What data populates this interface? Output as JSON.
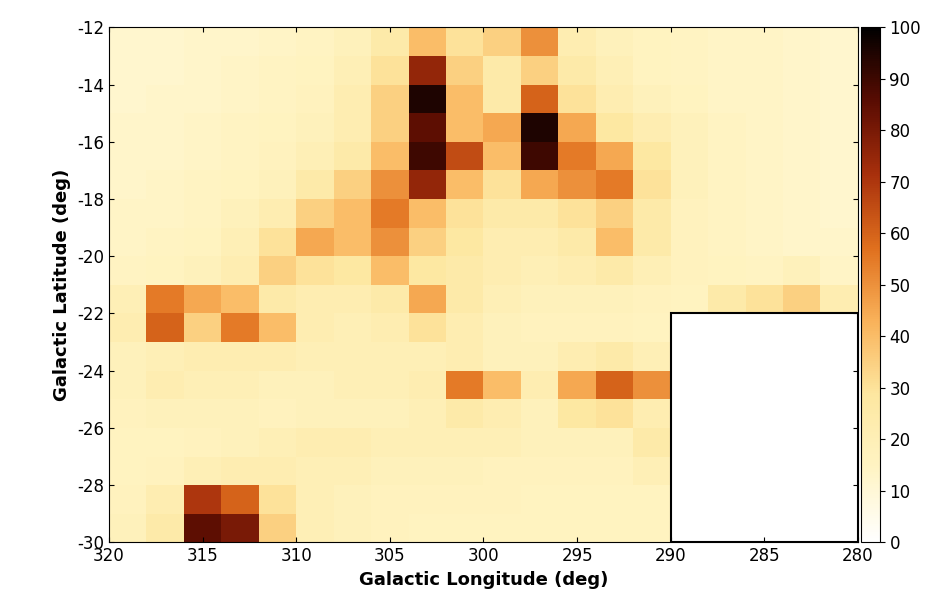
{
  "chart_data": {
    "type": "heatmap",
    "x_label": "Galactic Longitude (deg)",
    "y_label": "Galactic Latitude (deg)",
    "xlim": [
      320,
      280
    ],
    "ylim": [
      -30,
      -12
    ],
    "xticks": [
      320,
      315,
      310,
      305,
      300,
      295,
      290,
      285,
      280
    ],
    "yticks": [
      -30,
      -28,
      -26,
      -24,
      -22,
      -20,
      -18,
      -16,
      -14,
      -12
    ],
    "x_edges": [
      320,
      318,
      316,
      314,
      312,
      310,
      308,
      306,
      304,
      302,
      300,
      298,
      296,
      294,
      292,
      290,
      288,
      286,
      284,
      282,
      280
    ],
    "y_edges": [
      -12,
      -13,
      -14,
      -15,
      -16,
      -17,
      -18,
      -19,
      -20,
      -21,
      -22,
      -23,
      -24,
      -25,
      -26,
      -27,
      -28,
      -29,
      -30
    ],
    "cells": [
      [
        12,
        12,
        13,
        13,
        14,
        15,
        18,
        25,
        40,
        30,
        35,
        50,
        22,
        18,
        16,
        15,
        14,
        14,
        13,
        12
      ],
      [
        12,
        12,
        13,
        14,
        15,
        16,
        20,
        30,
        75,
        35,
        25,
        35,
        25,
        20,
        16,
        15,
        14,
        14,
        13,
        12
      ],
      [
        12,
        13,
        13,
        14,
        15,
        17,
        22,
        35,
        95,
        40,
        25,
        60,
        30,
        22,
        18,
        16,
        14,
        14,
        13,
        12
      ],
      [
        13,
        13,
        14,
        15,
        16,
        18,
        22,
        35,
        85,
        40,
        45,
        95,
        45,
        28,
        22,
        18,
        15,
        14,
        13,
        12
      ],
      [
        13,
        13,
        14,
        15,
        17,
        20,
        25,
        40,
        90,
        65,
        40,
        90,
        55,
        45,
        28,
        18,
        15,
        14,
        13,
        12
      ],
      [
        13,
        14,
        15,
        16,
        18,
        25,
        35,
        50,
        75,
        40,
        30,
        45,
        50,
        55,
        30,
        18,
        15,
        14,
        13,
        12
      ],
      [
        14,
        14,
        15,
        18,
        22,
        35,
        40,
        55,
        40,
        30,
        25,
        25,
        30,
        35,
        25,
        17,
        15,
        14,
        13,
        12
      ],
      [
        14,
        15,
        16,
        20,
        30,
        45,
        40,
        50,
        35,
        28,
        22,
        22,
        25,
        40,
        25,
        17,
        15,
        14,
        13,
        13
      ],
      [
        15,
        16,
        18,
        22,
        35,
        30,
        28,
        40,
        28,
        25,
        22,
        20,
        22,
        25,
        20,
        17,
        16,
        15,
        18,
        14
      ],
      [
        20,
        55,
        45,
        40,
        25,
        22,
        22,
        25,
        45,
        25,
        20,
        18,
        18,
        18,
        17,
        16,
        25,
        30,
        35,
        22
      ],
      [
        22,
        60,
        35,
        55,
        40,
        22,
        20,
        22,
        30,
        22,
        18,
        17,
        17,
        17,
        16,
        null,
        null,
        null,
        null,
        null
      ],
      [
        18,
        20,
        22,
        22,
        22,
        20,
        20,
        20,
        20,
        22,
        18,
        18,
        22,
        25,
        20,
        null,
        null,
        null,
        null,
        null
      ],
      [
        18,
        22,
        20,
        20,
        18,
        18,
        20,
        20,
        22,
        55,
        40,
        22,
        45,
        60,
        50,
        null,
        null,
        null,
        null,
        null
      ],
      [
        17,
        18,
        18,
        18,
        17,
        18,
        18,
        18,
        20,
        25,
        22,
        18,
        28,
        30,
        22,
        null,
        null,
        null,
        null,
        null
      ],
      [
        16,
        16,
        17,
        18,
        20,
        22,
        22,
        20,
        20,
        20,
        20,
        18,
        18,
        18,
        25,
        null,
        null,
        null,
        null,
        null
      ],
      [
        16,
        17,
        20,
        22,
        22,
        20,
        20,
        18,
        18,
        18,
        17,
        17,
        17,
        17,
        20,
        null,
        null,
        null,
        null,
        null
      ],
      [
        17,
        22,
        70,
        60,
        30,
        20,
        18,
        17,
        17,
        17,
        17,
        16,
        16,
        16,
        16,
        null,
        null,
        null,
        null,
        null
      ],
      [
        18,
        25,
        85,
        80,
        35,
        20,
        18,
        17,
        16,
        16,
        16,
        16,
        16,
        16,
        16,
        null,
        null,
        null,
        null,
        null
      ]
    ],
    "colorbar": {
      "lim": [
        0,
        100
      ],
      "ticks": [
        0,
        10,
        20,
        30,
        40,
        50,
        60,
        70,
        80,
        90,
        100
      ]
    }
  }
}
